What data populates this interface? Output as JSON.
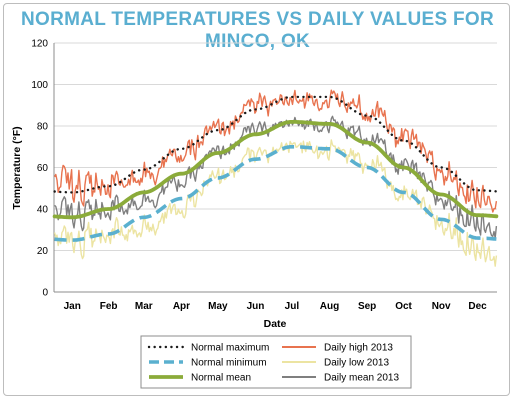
{
  "title": "NORMAL TEMPERATURES VS DAILY VALUES FOR MINCO, OK",
  "chart_data": {
    "type": "line",
    "title": "NORMAL TEMPERATURES VS DAILY VALUES FOR MINCO, OK",
    "xlabel": "Date",
    "ylabel": "Temperature (°F)",
    "ylim": [
      0,
      120
    ],
    "yticks": [
      "0",
      "20",
      "40",
      "60",
      "80",
      "100",
      "120"
    ],
    "months": [
      "Jan",
      "Feb",
      "Mar",
      "Apr",
      "May",
      "Jun",
      "Jul",
      "Aug",
      "Sep",
      "Oct",
      "Nov",
      "Dec"
    ],
    "grid": "horizontal",
    "legend": "bottom-center",
    "series": [
      {
        "name": "Normal maximum",
        "style": "dotted",
        "color": "#1a1a1a",
        "values": [
          48,
          51,
          59,
          69,
          78,
          88,
          94,
          94,
          85,
          73,
          60,
          49
        ]
      },
      {
        "name": "Normal minimum",
        "style": "dashed",
        "color": "#5ab0cf",
        "values": [
          25,
          28,
          36,
          45,
          55,
          64,
          70,
          69,
          60,
          48,
          35,
          26
        ]
      },
      {
        "name": "Normal mean",
        "style": "solid",
        "color": "#8bab3a",
        "values": [
          36,
          40,
          48,
          57,
          67,
          76,
          82,
          81,
          72,
          60,
          47,
          37
        ]
      },
      {
        "name": "Daily high 2013",
        "style": "solid",
        "color": "#e8734f",
        "values": [
          52,
          53,
          58,
          66,
          78,
          90,
          92,
          93,
          88,
          74,
          58,
          48
        ]
      },
      {
        "name": "Daily low 2013",
        "style": "solid",
        "color": "#ece4a2",
        "values": [
          25,
          29,
          32,
          40,
          55,
          66,
          70,
          69,
          63,
          46,
          33,
          22
        ]
      },
      {
        "name": "Daily mean 2013",
        "style": "solid",
        "color": "#7f7f7f",
        "values": [
          38,
          41,
          45,
          53,
          67,
          78,
          81,
          81,
          75,
          60,
          45,
          35
        ]
      }
    ]
  }
}
